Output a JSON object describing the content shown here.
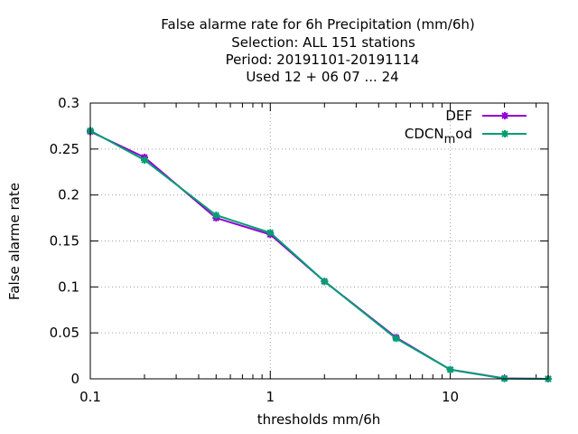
{
  "chart_data": {
    "type": "line",
    "title_lines": [
      "False alarme rate  for 6h Precipitation (mm/6h)",
      "Selection: ALL    151 stations",
      "Period: 20191101-20191114",
      "Used  12 + 06 07 ... 24"
    ],
    "xlabel": "thresholds mm/6h",
    "ylabel": "False alarme rate",
    "x_scale": "log",
    "xlim": [
      0.1,
      35
    ],
    "ylim": [
      0,
      0.3
    ],
    "x_ticks": [
      {
        "value": 0.1,
        "label": "0.1"
      },
      {
        "value": 1,
        "label": "1"
      },
      {
        "value": 10,
        "label": "10"
      }
    ],
    "y_ticks": [
      {
        "value": 0,
        "label": "0"
      },
      {
        "value": 0.05,
        "label": "0.05"
      },
      {
        "value": 0.1,
        "label": "0.1"
      },
      {
        "value": 0.15,
        "label": "0.15"
      },
      {
        "value": 0.2,
        "label": "0.2"
      },
      {
        "value": 0.25,
        "label": "0.25"
      },
      {
        "value": 0.3,
        "label": "0.3"
      }
    ],
    "grid": true,
    "legend_position": "top-right",
    "x": [
      0.1,
      0.2,
      0.5,
      1,
      2,
      5,
      10,
      20,
      35
    ],
    "series": [
      {
        "name": "DEF",
        "color": "#9400d3",
        "values": [
          0.269,
          0.241,
          0.175,
          0.157,
          0.106,
          0.045,
          0.01,
          0.0005,
          0.0
        ]
      },
      {
        "name": "CDCN_mod",
        "name_main": "CDCN",
        "name_sub": "m",
        "name_tail": "od",
        "color": "#009e73",
        "values": [
          0.27,
          0.238,
          0.178,
          0.159,
          0.106,
          0.044,
          0.01,
          0.0003,
          0.0
        ]
      }
    ]
  }
}
